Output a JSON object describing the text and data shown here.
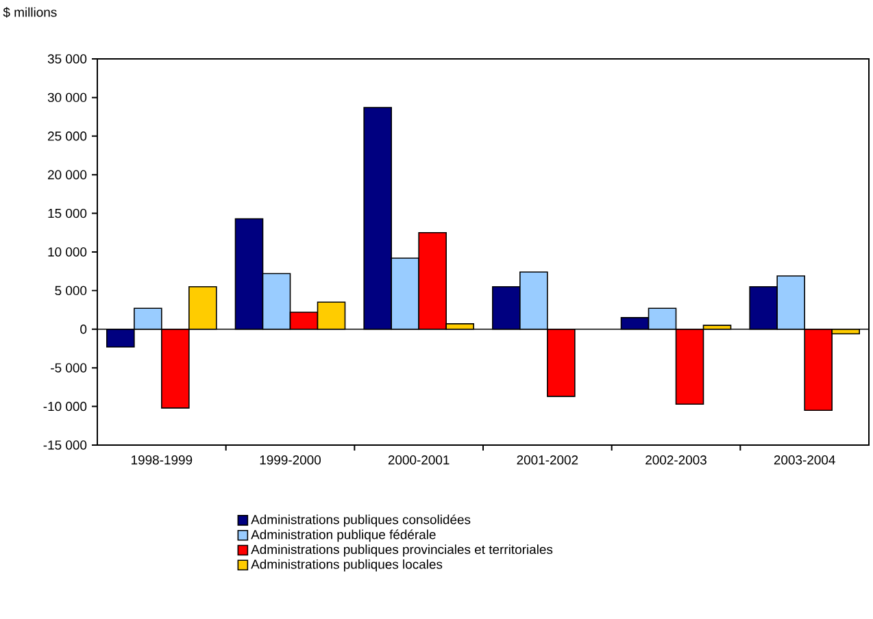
{
  "chart_data": {
    "type": "bar",
    "ylabel": "$ millions",
    "categories": [
      "1998-1999",
      "1999-2000",
      "2000-2001",
      "2001-2002",
      "2002-2003",
      "2003-2004"
    ],
    "series": [
      {
        "name": "Administrations publiques consolidées",
        "color": "#000080",
        "values": [
          -2300,
          14300,
          28700,
          5500,
          1500,
          5500
        ]
      },
      {
        "name": "Administration publique fédérale",
        "color": "#99ccff",
        "values": [
          2700,
          7200,
          9200,
          7400,
          2700,
          6900
        ]
      },
      {
        "name": "Administrations publiques provinciales et territoriales",
        "color": "#ff0000",
        "values": [
          -10200,
          2200,
          12500,
          -8700,
          -9700,
          -10500
        ]
      },
      {
        "name": "Administrations publiques locales",
        "color": "#ffcc00",
        "values": [
          5500,
          3500,
          700,
          null,
          500,
          -600
        ]
      }
    ],
    "ylim": [
      -15000,
      35000
    ],
    "yticks": [
      {
        "value": -15000,
        "label": "-15 000"
      },
      {
        "value": -10000,
        "label": "-10 000"
      },
      {
        "value": -5000,
        "label": "-5 000"
      },
      0,
      {
        "value": 5000,
        "label": "5 000"
      },
      {
        "value": 10000,
        "label": "10 000"
      },
      {
        "value": 15000,
        "label": "15 000"
      },
      {
        "value": 20000,
        "label": "20 000"
      },
      {
        "value": 25000,
        "label": "25 000"
      },
      {
        "value": 30000,
        "label": "30 000"
      },
      {
        "value": 35000,
        "label": "35 000"
      }
    ],
    "legend": "bottom"
  }
}
